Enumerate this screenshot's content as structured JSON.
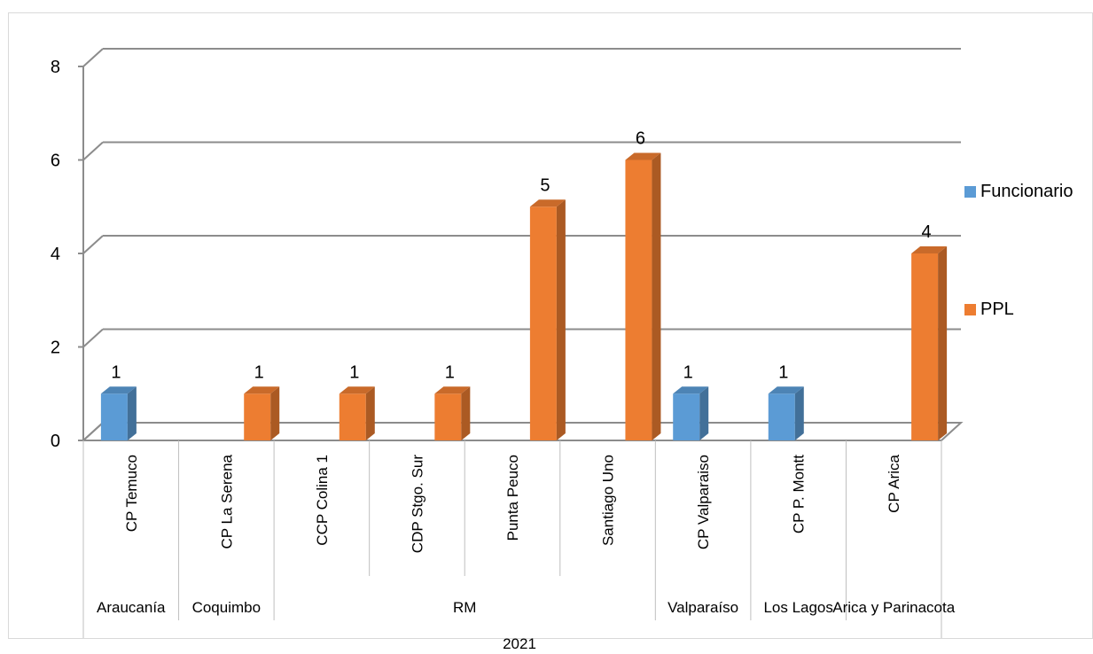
{
  "chart_data": {
    "type": "bar",
    "style": "3d-clustered-column",
    "categories": [
      "CP Temuco",
      "CP La Serena",
      "CCP Colina 1",
      "CDP Stgo. Sur",
      "Punta Peuco",
      "Santiago Uno",
      "CP Valparaiso",
      "CP P. Montt",
      "CP Arica"
    ],
    "groups": [
      {
        "label": "Araucanía",
        "start": 0,
        "end": 0
      },
      {
        "label": "Coquimbo",
        "start": 1,
        "end": 1
      },
      {
        "label": "RM",
        "start": 2,
        "end": 5
      },
      {
        "label": "Valparaíso",
        "start": 6,
        "end": 6
      },
      {
        "label": "Los Lagos",
        "start": 7,
        "end": 7
      },
      {
        "label": "Arica y Parinacota",
        "start": 8,
        "end": 8
      }
    ],
    "top_group": "2021",
    "series": [
      {
        "name": "Funcionario",
        "color": "#5b9bd5",
        "values": [
          1,
          null,
          null,
          null,
          null,
          null,
          1,
          1,
          null
        ]
      },
      {
        "name": "PPL",
        "color": "#ed7d31",
        "values": [
          null,
          1,
          1,
          1,
          5,
          6,
          null,
          null,
          4
        ]
      }
    ],
    "ylim": [
      0,
      8
    ],
    "yticks": [
      0,
      2,
      4,
      6,
      8
    ],
    "ytick_labels": [
      "0",
      "2",
      "4",
      "6",
      "8"
    ],
    "grid": true,
    "legend_position": "right",
    "data_labels": true
  }
}
